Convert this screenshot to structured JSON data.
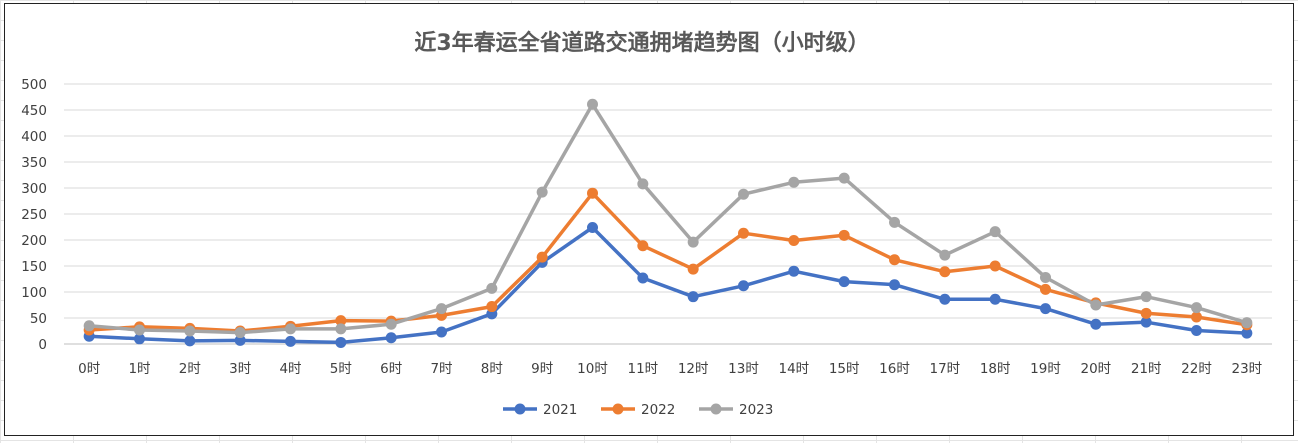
{
  "chart_data": {
    "type": "line",
    "title": "近3年春运全省道路交通拥堵趋势图（小时级）",
    "categories": [
      "0时",
      "1时",
      "2时",
      "3时",
      "4时",
      "5时",
      "6时",
      "7时",
      "8时",
      "9时",
      "10时",
      "11时",
      "12时",
      "13时",
      "14时",
      "15时",
      "16时",
      "17时",
      "18时",
      "19时",
      "20时",
      "21时",
      "22时",
      "23时"
    ],
    "ylim": [
      0,
      500
    ],
    "yticks": [
      "0",
      "50",
      "100",
      "150",
      "200",
      "250",
      "300",
      "350",
      "400",
      "450",
      "500"
    ],
    "grid": true,
    "legend_position": "bottom",
    "series": [
      {
        "name": "2021",
        "color": "#4472C4",
        "values": [
          15,
          10,
          6,
          7,
          5,
          3,
          12,
          23,
          58,
          157,
          224,
          127,
          91,
          112,
          140,
          120,
          114,
          86,
          86,
          68,
          38,
          42,
          26,
          21
        ]
      },
      {
        "name": "2022",
        "color": "#ED7D31",
        "values": [
          27,
          33,
          30,
          25,
          34,
          45,
          44,
          55,
          72,
          167,
          290,
          189,
          144,
          213,
          199,
          209,
          162,
          139,
          150,
          105,
          79,
          59,
          52,
          37
        ]
      },
      {
        "name": "2023",
        "color": "#A5A5A5",
        "values": [
          35,
          27,
          25,
          22,
          29,
          29,
          38,
          68,
          107,
          292,
          461,
          308,
          196,
          288,
          311,
          319,
          234,
          171,
          216,
          128,
          75,
          91,
          70,
          41
        ]
      }
    ]
  }
}
